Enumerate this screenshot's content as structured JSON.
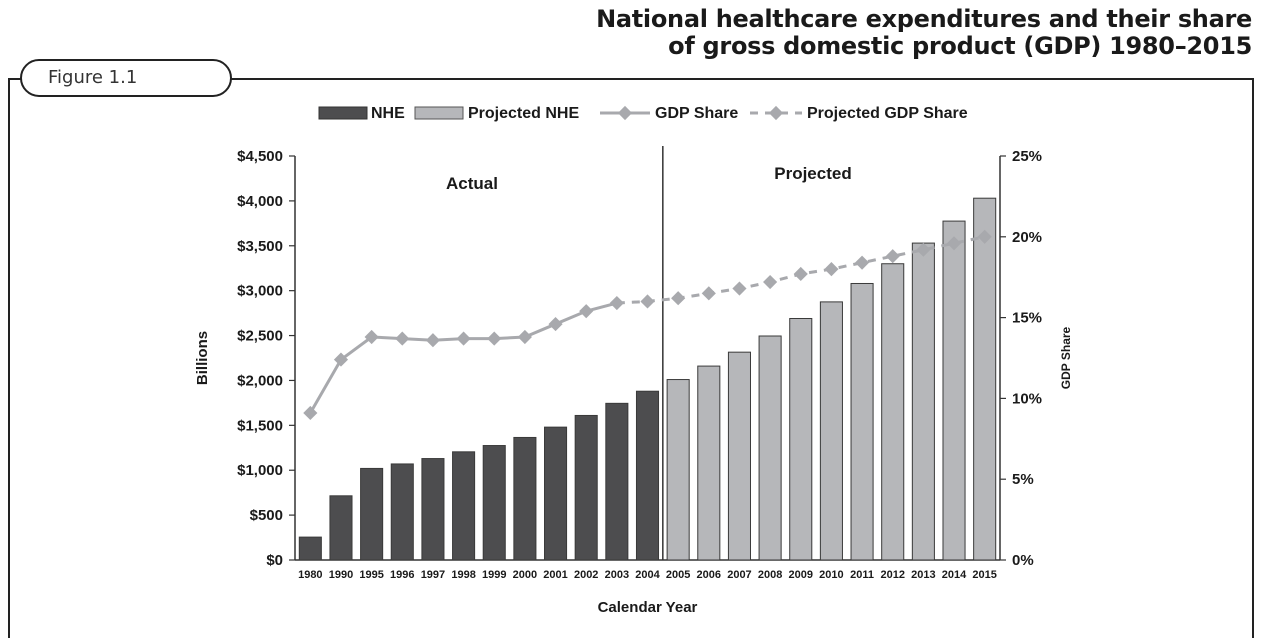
{
  "title_lines": [
    "National healthcare expenditures and their share",
    "of gross domestic product (GDP) 1980–2015"
  ],
  "figure_label": "Figure 1.1",
  "chart_data": {
    "type": "bar",
    "xlabel": "Calendar Year",
    "ylabel": "Billions",
    "y2label": "GDP Share",
    "ylim": [
      0,
      4500
    ],
    "y2lim": [
      0,
      25
    ],
    "y_ticks": [
      "$0",
      "$500",
      "$1,000",
      "$1,500",
      "$2,000",
      "$2,500",
      "$3,000",
      "$3,500",
      "$4,000",
      "$4,500"
    ],
    "y2_ticks": [
      "0%",
      "5%",
      "10%",
      "15%",
      "20%",
      "25%"
    ],
    "region_labels": [
      "Actual",
      "Projected"
    ],
    "legend": [
      "NHE",
      "Projected NHE",
      "GDP Share",
      "Projected GDP Share"
    ],
    "legend_position": "top",
    "categories": [
      "1980",
      "1990",
      "1995",
      "1996",
      "1997",
      "1998",
      "1999",
      "2000",
      "2001",
      "2002",
      "2003",
      "2004",
      "2005",
      "2006",
      "2007",
      "2008",
      "2009",
      "2010",
      "2011",
      "2012",
      "2013",
      "2014",
      "2015"
    ],
    "series": [
      {
        "name": "NHE",
        "kind": "bar",
        "color": "#4d4d4f",
        "values": [
          255,
          715,
          1020,
          1070,
          1130,
          1205,
          1275,
          1365,
          1480,
          1610,
          1745,
          1880,
          null,
          null,
          null,
          null,
          null,
          null,
          null,
          null,
          null,
          null,
          null
        ]
      },
      {
        "name": "Projected NHE",
        "kind": "bar",
        "color": "#b6b7ba",
        "values": [
          null,
          null,
          null,
          null,
          null,
          null,
          null,
          null,
          null,
          null,
          null,
          null,
          2010,
          2160,
          2315,
          2495,
          2690,
          2875,
          3080,
          3300,
          3530,
          3775,
          4030
        ]
      },
      {
        "name": "GDP Share",
        "kind": "line",
        "color": "#a8a9ad",
        "values": [
          9.1,
          12.4,
          13.8,
          13.7,
          13.6,
          13.7,
          13.7,
          13.8,
          14.6,
          15.4,
          15.9,
          null,
          null,
          null,
          null,
          null,
          null,
          null,
          null,
          null,
          null,
          null,
          null
        ]
      },
      {
        "name": "Projected GDP Share",
        "kind": "line",
        "color": "#a8a9ad",
        "values": [
          null,
          null,
          null,
          null,
          null,
          null,
          null,
          null,
          null,
          null,
          null,
          16.0,
          16.2,
          16.5,
          16.8,
          17.2,
          17.7,
          18.0,
          18.4,
          18.8,
          19.2,
          19.6,
          20.0
        ]
      }
    ]
  }
}
